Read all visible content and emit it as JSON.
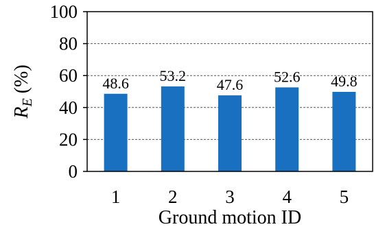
{
  "chart_data": {
    "type": "bar",
    "categories": [
      "1",
      "2",
      "3",
      "4",
      "5"
    ],
    "values": [
      48.6,
      53.2,
      47.6,
      52.6,
      49.8
    ],
    "data_labels": [
      "48.6",
      "53.2",
      "47.6",
      "52.6",
      "49.8"
    ],
    "xlabel": "Ground motion ID",
    "ylabel": {
      "main": "R",
      "sub": "E",
      "unit": " (%)"
    },
    "ylim": [
      0,
      100
    ],
    "yticks": [
      "0",
      "20",
      "40",
      "60",
      "80",
      "100"
    ],
    "grid": "horizontal-dashed",
    "bar_color": "#1a70c0"
  }
}
